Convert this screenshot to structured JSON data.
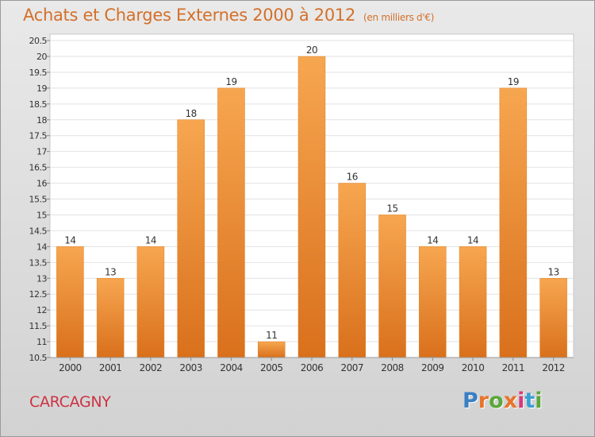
{
  "page": {
    "title": "Achats et Charges Externes 2000 à 2012",
    "subtitle": "(en milliers d'€)",
    "city": "CARCAGNY",
    "logo_text": "Proxiti",
    "logo_colors": [
      "#3a7fc4",
      "#e8742a",
      "#5aa83a",
      "#e8742a",
      "#d43b7a",
      "#3a9fd4",
      "#5aa83a"
    ]
  },
  "chart_data": {
    "type": "bar",
    "title": "Achats et Charges Externes 2000 à 2012",
    "subtitle": "(en milliers d'€)",
    "categories": [
      "2000",
      "2001",
      "2002",
      "2003",
      "2004",
      "2005",
      "2006",
      "2007",
      "2008",
      "2009",
      "2010",
      "2011",
      "2012"
    ],
    "values": [
      14,
      13,
      14,
      18,
      19,
      11,
      20,
      16,
      15,
      14,
      14,
      19,
      13
    ],
    "data_labels": [
      "14",
      "13",
      "14",
      "18",
      "19",
      "11",
      "20",
      "16",
      "15",
      "14",
      "14",
      "19",
      "13"
    ],
    "ylim": [
      10.5,
      20.5
    ],
    "yticks": [
      "10.5",
      "11",
      "11.5",
      "12",
      "12.5",
      "13",
      "13.5",
      "14",
      "14.5",
      "15",
      "15.5",
      "16",
      "16.5",
      "17",
      "17.5",
      "18",
      "18.5",
      "19",
      "19.5",
      "20",
      "20.5"
    ],
    "xlabel": "",
    "ylabel": "",
    "grid": true,
    "bar_color": "#f08a2e"
  }
}
